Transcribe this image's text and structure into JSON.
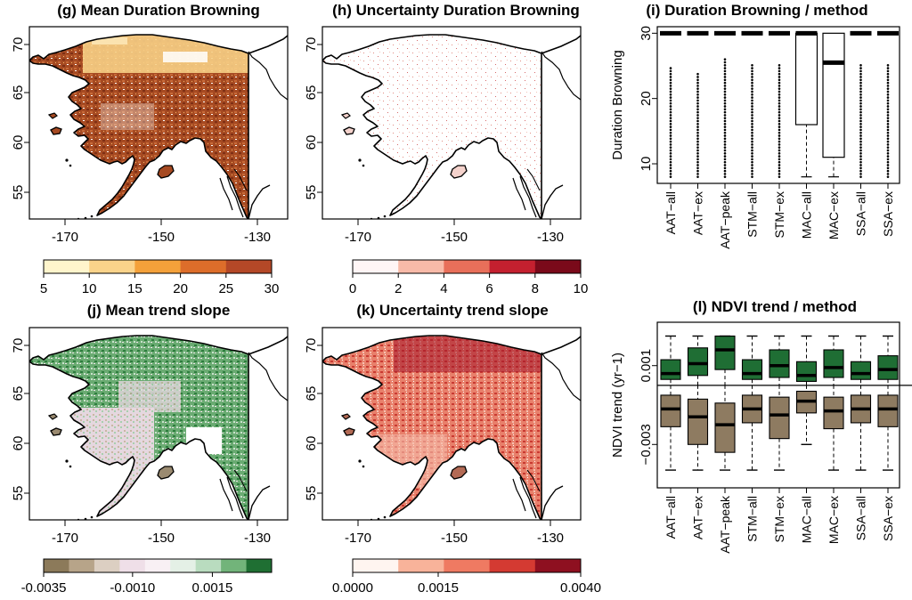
{
  "chart_data": [
    {
      "panel": "g",
      "type": "heatmap",
      "title": "(g) Mean Duration Browning",
      "x_ticks": [
        "-170",
        "-150",
        "-130"
      ],
      "y_ticks": [
        "55",
        "60",
        "65",
        "70"
      ],
      "dominant_color": "#a0401e",
      "accent_color": "#f7c870",
      "colorbar": {
        "labels": [
          "5",
          "10",
          "15",
          "20",
          "25",
          "30"
        ],
        "colors": [
          "#fff5cc",
          "#fad38a",
          "#f4a13a",
          "#dd6d2a",
          "#b44827"
        ]
      }
    },
    {
      "panel": "h",
      "type": "heatmap",
      "title": "(h) Uncertainty Duration Browning",
      "x_ticks": [
        "-170",
        "-150",
        "-130"
      ],
      "y_ticks": [
        "55",
        "60",
        "65",
        "70"
      ],
      "dominant_color": "#ffffff",
      "accent_color": "#d66a6a",
      "colorbar": {
        "labels": [
          "0",
          "2",
          "4",
          "6",
          "8",
          "10"
        ],
        "colors": [
          "#fff5f5",
          "#f8baa8",
          "#e86f5a",
          "#c4202f",
          "#7a0a1a"
        ]
      }
    },
    {
      "panel": "i",
      "type": "box",
      "title": "(i) Duration Browning / method",
      "ylabel": "Duration Browning",
      "ylim": [
        7,
        31
      ],
      "y_ticks": [
        "10",
        "20",
        "30"
      ],
      "categories": [
        "AAT−all",
        "AAT−ex",
        "AAT−peak",
        "STM−all",
        "STM−ex",
        "MAC−all",
        "MAC−ex",
        "SSA−all",
        "SSA−ex"
      ],
      "boxes": [
        {
          "min": 30,
          "q1": 30,
          "median": 30,
          "q3": 30,
          "max": 30
        },
        {
          "min": 30,
          "q1": 30,
          "median": 30,
          "q3": 30,
          "max": 30
        },
        {
          "min": 30,
          "q1": 30,
          "median": 30,
          "q3": 30,
          "max": 30
        },
        {
          "min": 30,
          "q1": 30,
          "median": 30,
          "q3": 30,
          "max": 30
        },
        {
          "min": 30,
          "q1": 30,
          "median": 30,
          "q3": 30,
          "max": 30
        },
        {
          "min": 8,
          "q1": 16,
          "median": 30,
          "q3": 30,
          "max": 30
        },
        {
          "min": 8,
          "q1": 11,
          "median": 25.5,
          "q3": 30,
          "max": 30
        },
        {
          "min": 30,
          "q1": 30,
          "median": 30,
          "q3": 30,
          "max": 30
        },
        {
          "min": 30,
          "q1": 30,
          "median": 30,
          "q3": 30,
          "max": 30
        }
      ],
      "outlier_ranges": [
        [
          8,
          25
        ],
        [
          8,
          24
        ],
        [
          8,
          26
        ],
        [
          8,
          25.5
        ],
        [
          8,
          25.5
        ],
        [],
        [],
        [
          8,
          25.5
        ],
        [
          8,
          25.5
        ]
      ]
    },
    {
      "panel": "j",
      "type": "heatmap",
      "title": "(j) Mean trend slope",
      "x_ticks": [
        "-170",
        "-150",
        "-130"
      ],
      "y_ticks": [
        "55",
        "60",
        "65",
        "70"
      ],
      "dominant_color": "#4d9a5c",
      "accent_color": "#e0d4dc",
      "colorbar": {
        "labels": [
          "-0.0035",
          "-0.0010",
          "0.0015"
        ],
        "colors": [
          "#8c7a5a",
          "#b7a489",
          "#dccfc2",
          "#efdfe8",
          "#f8f0f4",
          "#e4f0e6",
          "#b9dcbf",
          "#72b47a",
          "#1f6f33"
        ]
      }
    },
    {
      "panel": "k",
      "type": "heatmap",
      "title": "(k) Uncertainty trend slope",
      "x_ticks": [
        "-170",
        "-150",
        "-130"
      ],
      "y_ticks": [
        "55",
        "60",
        "65",
        "70"
      ],
      "dominant_color": "#e06a58",
      "accent_color": "#8e1020",
      "colorbar": {
        "labels": [
          "0.0000",
          "0.0015",
          "0.0040"
        ],
        "colors": [
          "#fff5f0",
          "#f8b39a",
          "#ef7a62",
          "#d43a32",
          "#8e1020"
        ]
      }
    },
    {
      "panel": "l",
      "type": "box",
      "title": "(l) NDVI trend / method",
      "ylabel": "NDVI trend (yr−1)",
      "ylim": [
        -0.0052,
        0.0032
      ],
      "y_ticks": [
        {
          "value": 0.001,
          "label": "0.001"
        },
        {
          "value": -0.003,
          "label": "−0.003"
        }
      ],
      "categories": [
        "AAT−all",
        "AAT−ex",
        "AAT−peak",
        "STM−all",
        "STM−ex",
        "MAC−all",
        "MAC−ex",
        "SSA−all",
        "SSA−ex"
      ],
      "positive_color": "#1f6e34",
      "negative_color": "#8e7b61",
      "positive": [
        {
          "min": 0.0,
          "q1": 0.0003,
          "median": 0.0006,
          "q3": 0.0013,
          "max": 0.0025
        },
        {
          "min": 0.0,
          "q1": 0.0005,
          "median": 0.0011,
          "q3": 0.0019,
          "max": 0.0025
        },
        {
          "min": 0.0,
          "q1": 0.0008,
          "median": 0.0018,
          "q3": 0.0025,
          "max": 0.0025
        },
        {
          "min": 0.0,
          "q1": 0.0003,
          "median": 0.0006,
          "q3": 0.0013,
          "max": 0.0025
        },
        {
          "min": 0.0,
          "q1": 0.0004,
          "median": 0.001,
          "q3": 0.0018,
          "max": 0.0025
        },
        {
          "min": 0.0,
          "q1": 0.0002,
          "median": 0.0005,
          "q3": 0.0012,
          "max": 0.0025
        },
        {
          "min": 0.0,
          "q1": 0.0004,
          "median": 0.0009,
          "q3": 0.0018,
          "max": 0.0025
        },
        {
          "min": 0.0,
          "q1": 0.0003,
          "median": 0.0006,
          "q3": 0.0012,
          "max": 0.0025
        },
        {
          "min": 0.0,
          "q1": 0.0003,
          "median": 0.0008,
          "q3": 0.0015,
          "max": 0.0025
        }
      ],
      "negative": [
        {
          "min": -0.0043,
          "q1": -0.0021,
          "median": -0.0012,
          "q3": -0.0005,
          "max": 0.0
        },
        {
          "min": -0.0043,
          "q1": -0.003,
          "median": -0.0016,
          "q3": -0.0007,
          "max": 0.0
        },
        {
          "min": -0.0043,
          "q1": -0.0034,
          "median": -0.002,
          "q3": -0.0009,
          "max": 0.0
        },
        {
          "min": -0.0043,
          "q1": -0.0019,
          "median": -0.0012,
          "q3": -0.0005,
          "max": 0.0
        },
        {
          "min": -0.0043,
          "q1": -0.0027,
          "median": -0.0015,
          "q3": -0.0006,
          "max": 0.0
        },
        {
          "min": -0.003,
          "q1": -0.0014,
          "median": -0.0008,
          "q3": -0.0003,
          "max": 0.0
        },
        {
          "min": -0.0043,
          "q1": -0.0022,
          "median": -0.0013,
          "q3": -0.0006,
          "max": 0.0
        },
        {
          "min": -0.0043,
          "q1": -0.0019,
          "median": -0.0012,
          "q3": -0.0005,
          "max": 0.0
        },
        {
          "min": -0.0043,
          "q1": -0.0021,
          "median": -0.0012,
          "q3": -0.0005,
          "max": 0.0
        }
      ]
    }
  ]
}
